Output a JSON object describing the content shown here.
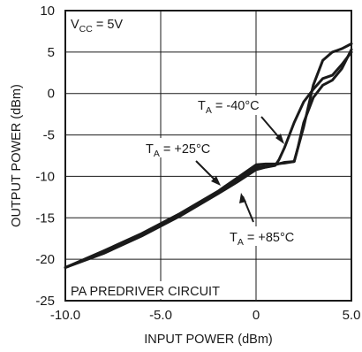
{
  "chart_data": {
    "type": "line",
    "title": "",
    "xlabel": "INPUT POWER (dBm)",
    "ylabel": "OUTPUT POWER (dBm)",
    "xlim": [
      -10.0,
      5.0
    ],
    "ylim": [
      -25,
      10
    ],
    "xticks": [
      -10.0,
      -5.0,
      0,
      5.0
    ],
    "xtick_labels": [
      "-10.0",
      "-5.0",
      "0",
      "5.0"
    ],
    "yticks": [
      -25,
      -20,
      -15,
      -10,
      -5,
      0,
      5,
      10
    ],
    "ytick_labels": [
      "-25",
      "-20",
      "-15",
      "-10",
      "-5",
      "0",
      "5",
      "10"
    ],
    "grid": true,
    "legend": "none",
    "vcc_label": {
      "main": "V",
      "sub": "CC",
      "rest": " = 5V"
    },
    "footer_label": "PA PREDRIVER CIRCUIT",
    "curve_color": "#1a1a1a",
    "series": [
      {
        "label": {
          "main": "T",
          "sub": "A",
          "rest": " = -40°C"
        },
        "x": [
          -10.0,
          -8.0,
          -6.0,
          -4.0,
          -2.0,
          -1.0,
          0.0,
          0.5,
          1.0,
          1.2,
          1.5,
          2.0,
          2.5,
          3.0,
          3.5,
          4.0,
          4.5,
          5.0
        ],
        "y": [
          -21.0,
          -19.3,
          -17.2,
          -14.8,
          -12.1,
          -10.7,
          -9.2,
          -8.9,
          -8.7,
          -8.0,
          -6.5,
          -3.5,
          -1.0,
          0.5,
          1.8,
          2.2,
          3.5,
          5.0
        ]
      },
      {
        "label": {
          "main": "T",
          "sub": "A",
          "rest": " = +25°C"
        },
        "x": [
          -10.0,
          -8.0,
          -6.0,
          -4.0,
          -2.0,
          -1.0,
          0.0,
          0.5,
          1.0,
          1.5,
          2.0,
          2.5,
          3.0,
          3.5,
          4.0,
          4.5,
          5.0
        ],
        "y": [
          -21.0,
          -19.0,
          -16.9,
          -14.5,
          -11.8,
          -10.2,
          -8.6,
          -8.5,
          -8.5,
          -8.4,
          -8.2,
          -4.0,
          1.0,
          4.0,
          5.0,
          5.4,
          6.0
        ]
      },
      {
        "label": {
          "main": "T",
          "sub": "A",
          "rest": " = +85°C"
        },
        "x": [
          -10.0,
          -8.0,
          -6.0,
          -4.0,
          -2.0,
          -1.0,
          0.0,
          0.5,
          1.0,
          1.5,
          2.0,
          2.2,
          2.5,
          3.0,
          3.5,
          4.0,
          4.5,
          5.0
        ],
        "y": [
          -21.0,
          -19.1,
          -17.0,
          -14.6,
          -11.9,
          -10.4,
          -8.9,
          -8.8,
          -8.6,
          -8.3,
          -8.2,
          -6.5,
          -3.5,
          -0.5,
          1.0,
          1.6,
          3.0,
          5.3
        ]
      }
    ]
  }
}
